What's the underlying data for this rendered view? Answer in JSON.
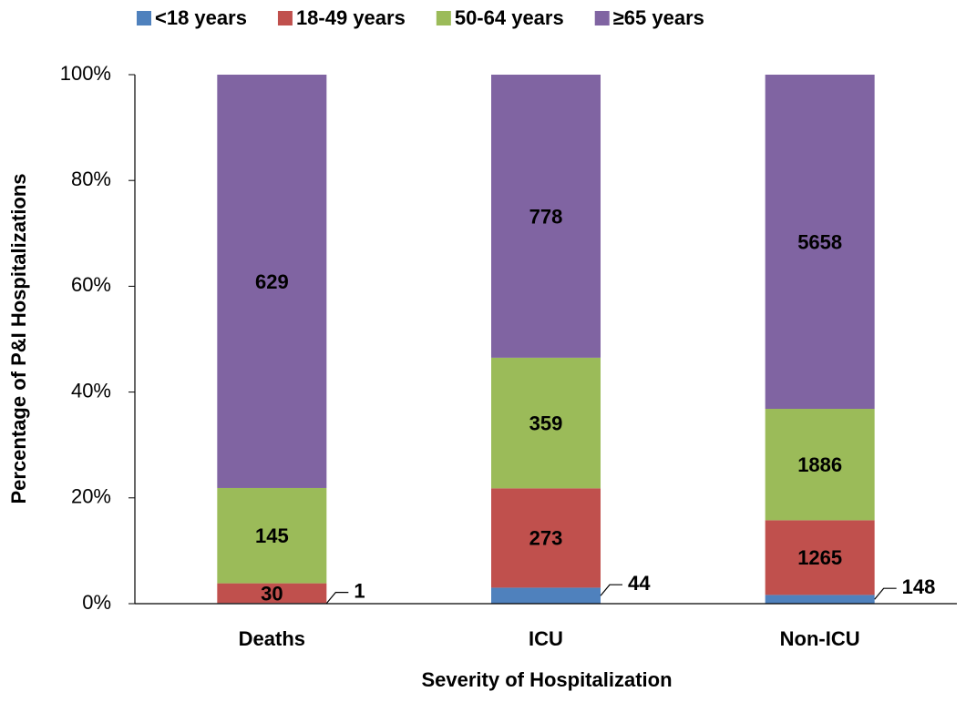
{
  "chart_data": {
    "type": "bar",
    "stacked": "percent",
    "xlabel": "Severity of Hospitalization",
    "ylabel": "Percentage of P&I Hospitalizations",
    "categories": [
      "Deaths",
      "ICU",
      "Non-ICU"
    ],
    "series": [
      {
        "name": "<18 years",
        "color": "#4f81bd",
        "values": [
          1,
          44,
          148
        ]
      },
      {
        "name": "18-49 years",
        "color": "#c0504d",
        "values": [
          30,
          273,
          1265
        ]
      },
      {
        "name": "50-64 years",
        "color": "#9bbb59",
        "values": [
          145,
          359,
          1886
        ]
      },
      {
        "name": "≥65 years",
        "color": "#8064a2",
        "values": [
          629,
          778,
          5658
        ]
      }
    ],
    "ylim": [
      0,
      100
    ],
    "yticks": [
      {
        "value": 0,
        "label": "0%"
      },
      {
        "value": 20,
        "label": "20%"
      },
      {
        "value": 40,
        "label": "40%"
      },
      {
        "value": 60,
        "label": "60%"
      },
      {
        "value": 80,
        "label": "80%"
      },
      {
        "value": 100,
        "label": "100%"
      }
    ],
    "legend": "top"
  }
}
